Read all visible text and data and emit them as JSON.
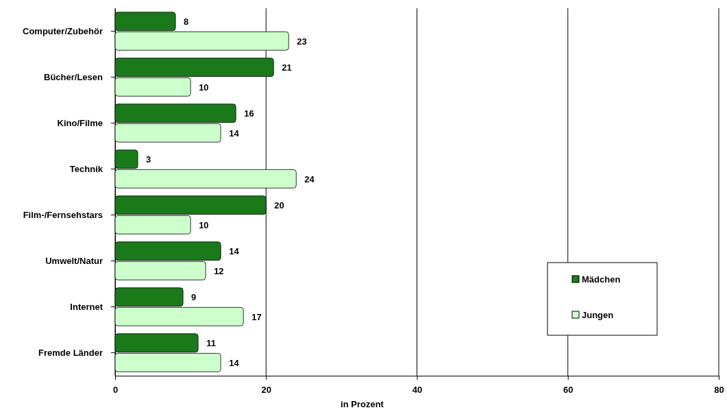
{
  "chart_data": {
    "type": "bar",
    "orientation": "horizontal",
    "xlabel": "in Prozent",
    "categories": [
      "Computer/Zubehör",
      "Bücher/Lesen",
      "Kino/Filme",
      "Technik",
      "Film-/Fernsehstars",
      "Umwelt/Natur",
      "Internet",
      "Fremde Länder"
    ],
    "series": [
      {
        "name": "Mädchen",
        "color": "#1a7a1a",
        "values": [
          8,
          21,
          16,
          3,
          20,
          14,
          9,
          11
        ]
      },
      {
        "name": "Jungen",
        "color": "#ccffcc",
        "values": [
          23,
          10,
          14,
          24,
          10,
          12,
          17,
          14
        ]
      }
    ],
    "xlim": [
      0,
      80
    ],
    "xticks": [
      0,
      20,
      40,
      60,
      80
    ],
    "grid": "x",
    "legend": "bottom right",
    "data_labels": true
  }
}
